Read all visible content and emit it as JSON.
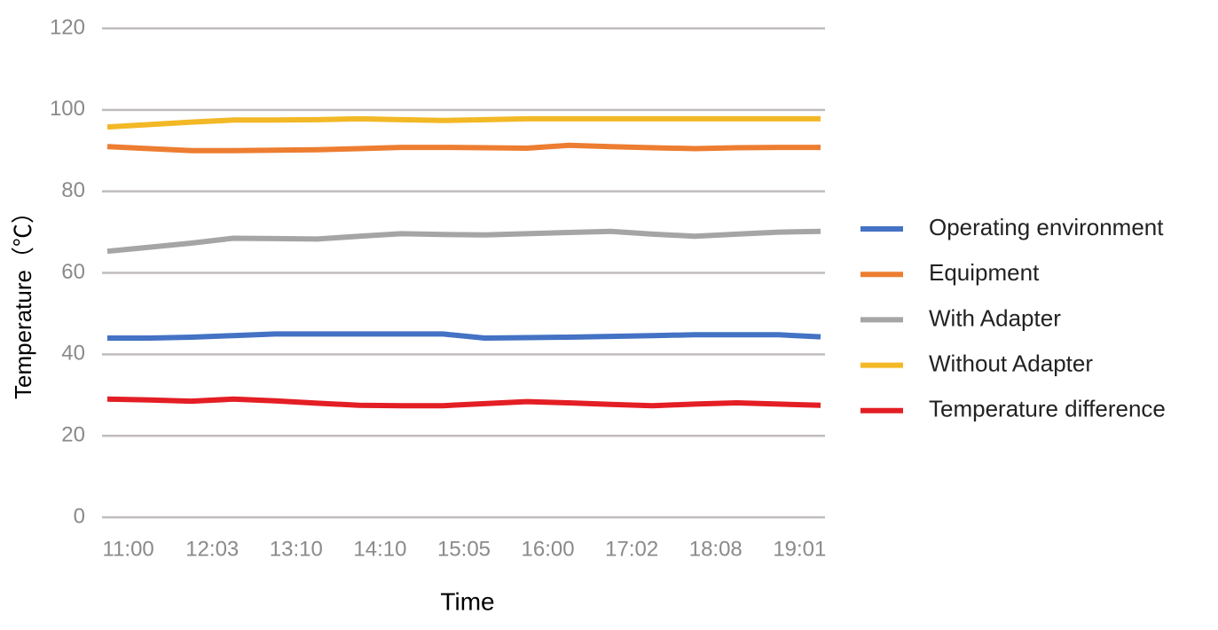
{
  "chart_data": {
    "type": "line",
    "x_label": "Time",
    "y_label": "Temperature（℃）",
    "categories": [
      "11:00",
      null,
      "12:03",
      null,
      "13:10",
      null,
      "14:10",
      null,
      "15:05",
      null,
      "16:00",
      null,
      "17:02",
      null,
      "18:08",
      null,
      "19:01",
      null
    ],
    "series": [
      {
        "name": "Operating environment",
        "color": "#4472c4",
        "values": [
          44,
          44,
          44.2,
          44.6,
          45,
          45,
          45,
          45,
          45,
          44,
          44.1,
          44.2,
          44.4,
          44.6,
          44.8,
          44.8,
          44.8,
          44.3
        ]
      },
      {
        "name": "Equipment",
        "color": "#ed7d31",
        "values": [
          91,
          90.5,
          90,
          90,
          90.1,
          90.2,
          90.5,
          90.8,
          90.8,
          90.7,
          90.6,
          91.3,
          91,
          90.7,
          90.5,
          90.7,
          90.8,
          90.8
        ]
      },
      {
        "name": "With Adapter",
        "color": "#a5a5a5",
        "values": [
          65.3,
          66.3,
          67.3,
          68.5,
          68.4,
          68.3,
          69,
          69.6,
          69.4,
          69.3,
          69.6,
          69.9,
          70.2,
          69.5,
          69,
          69.5,
          70,
          70.2
        ]
      },
      {
        "name": "Without Adapter",
        "color": "#f2b825",
        "values": [
          95.8,
          96.4,
          97,
          97.5,
          97.5,
          97.6,
          97.8,
          97.6,
          97.4,
          97.6,
          97.8,
          97.8,
          97.8,
          97.8,
          97.8,
          97.8,
          97.8,
          97.8
        ]
      },
      {
        "name": "Temperature difference",
        "color": "#e31e24",
        "values": [
          29,
          28.8,
          28.5,
          29,
          28.6,
          28,
          27.5,
          27.4,
          27.4,
          27.9,
          28.4,
          28.1,
          27.7,
          27.4,
          27.8,
          28.1,
          27.8,
          27.5
        ]
      }
    ],
    "ylim": [
      0,
      120
    ],
    "yticks": [
      0,
      20,
      40,
      60,
      80,
      100,
      120
    ],
    "grid": true,
    "legend": "right"
  }
}
